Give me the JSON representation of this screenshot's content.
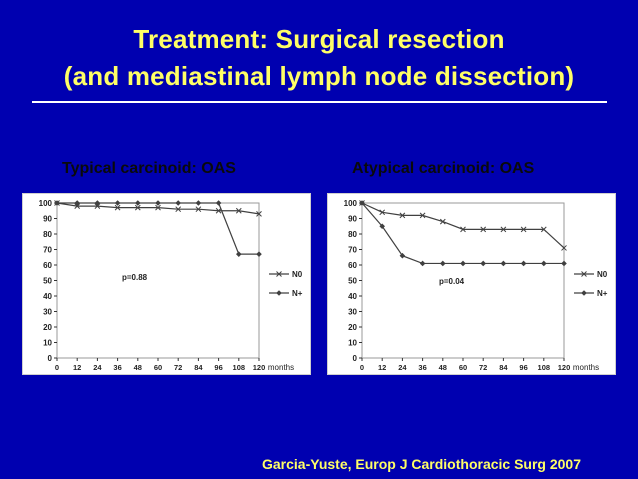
{
  "slide": {
    "title_line1": "Treatment: Surgical resection",
    "title_line2": "(and mediastinal lymph node dissection)",
    "citation": "Garcia-Yuste, Europ J Cardiothoracic Surg 2007"
  },
  "colors": {
    "background": "#0000b0",
    "title": "#ffff66",
    "series_line": "#404040"
  },
  "chart_data": [
    {
      "type": "line",
      "title": "Typical carcinoid: OAS",
      "xlabel": "months",
      "ylabel": "",
      "x": [
        0,
        12,
        24,
        36,
        48,
        60,
        72,
        84,
        96,
        108,
        120
      ],
      "xlim": [
        0,
        120
      ],
      "ylim": [
        0,
        100
      ],
      "yticks": [
        0,
        10,
        20,
        30,
        40,
        50,
        60,
        70,
        80,
        90,
        100
      ],
      "series": [
        {
          "name": "N0",
          "marker": "x",
          "x": [
            0,
            12,
            24,
            36,
            48,
            60,
            72,
            84,
            96,
            108,
            120
          ],
          "values": [
            100,
            98,
            98,
            97,
            97,
            97,
            96,
            96,
            95,
            95,
            93
          ]
        },
        {
          "name": "N+",
          "marker": "diamond",
          "x": [
            0,
            12,
            24,
            36,
            48,
            60,
            72,
            84,
            96,
            108,
            120
          ],
          "values": [
            100,
            100,
            100,
            100,
            100,
            100,
            100,
            100,
            100,
            67,
            67
          ]
        }
      ],
      "annotation": "p=0.88",
      "legend": "right"
    },
    {
      "type": "line",
      "title": "Atypical carcinoid: OAS",
      "xlabel": "months",
      "ylabel": "",
      "x": [
        0,
        12,
        24,
        36,
        48,
        60,
        72,
        84,
        96,
        108,
        120
      ],
      "xlim": [
        0,
        120
      ],
      "ylim": [
        0,
        100
      ],
      "yticks": [
        0,
        10,
        20,
        30,
        40,
        50,
        60,
        70,
        80,
        90,
        100
      ],
      "series": [
        {
          "name": "N0",
          "marker": "x",
          "x": [
            0,
            12,
            24,
            36,
            48,
            60,
            72,
            84,
            96,
            108,
            120
          ],
          "values": [
            100,
            94,
            92,
            92,
            88,
            83,
            83,
            83,
            83,
            83,
            71
          ]
        },
        {
          "name": "N+",
          "marker": "diamond",
          "x": [
            0,
            12,
            24,
            36,
            48,
            60,
            72,
            84,
            96,
            108,
            120
          ],
          "values": [
            100,
            85,
            66,
            61,
            61,
            61,
            61,
            61,
            61,
            61,
            61
          ]
        }
      ],
      "annotation": "p=0.04",
      "legend": "right"
    }
  ]
}
